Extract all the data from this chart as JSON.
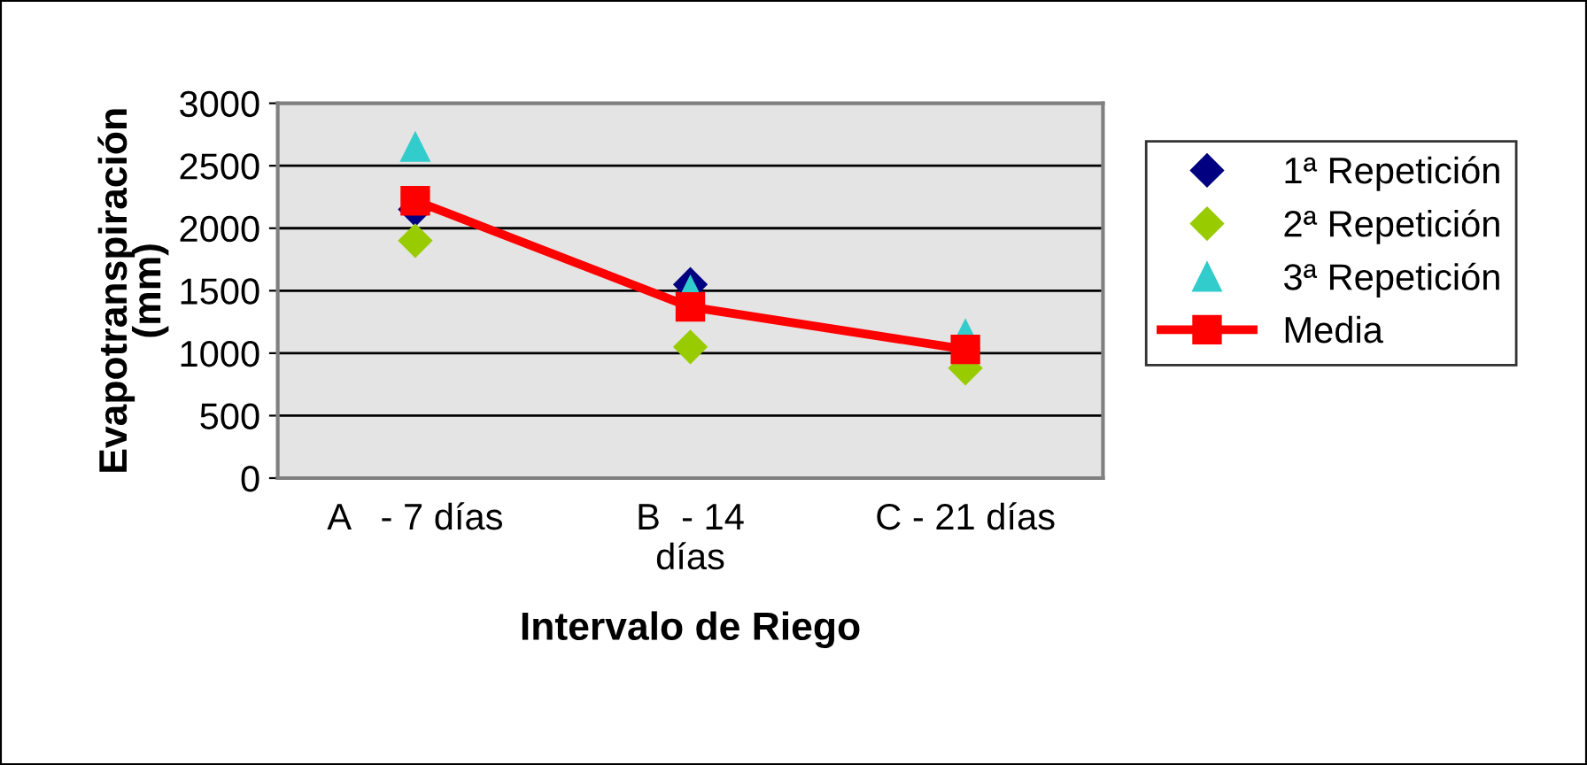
{
  "chart_data": {
    "type": "scatter",
    "xlabel": "Intervalo de Riego",
    "ylabel": "Evapotranspiración\n(mm)",
    "categories": [
      "A   - 7 días",
      "B  - 14\ndías",
      "C - 21 días"
    ],
    "series": [
      {
        "name": "1ª Repetición",
        "color": "#000080",
        "marker": "diamond",
        "values": [
          2150,
          1550,
          null
        ]
      },
      {
        "name": "2ª Repetición",
        "color": "#99cc00",
        "marker": "diamond",
        "values": [
          1900,
          1050,
          880
        ]
      },
      {
        "name": "3ª Repetición",
        "color": "#33cccc",
        "marker": "triangle",
        "values": [
          2650,
          1500,
          1150
        ]
      },
      {
        "name": "Media",
        "type": "line",
        "color": "#ff0000",
        "marker": "square",
        "values": [
          2220,
          1370,
          1030
        ]
      }
    ],
    "ylim": [
      0,
      3000
    ],
    "yticks": [
      0,
      500,
      1000,
      1500,
      2000,
      2500,
      3000
    ],
    "grid": "y",
    "legend": "right"
  }
}
